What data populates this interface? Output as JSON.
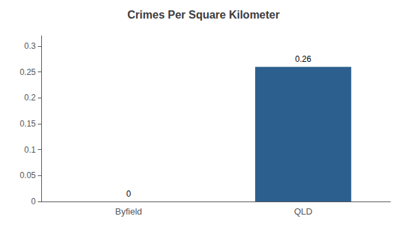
{
  "chart_data": {
    "type": "bar",
    "title": "Crimes Per Square Kilometer",
    "categories": [
      "Byfield",
      "QLD"
    ],
    "values": [
      0,
      0.26
    ],
    "color": "#2d5f8e",
    "ylim": [
      0,
      0.32
    ],
    "yticks": [
      0,
      0.05,
      0.1,
      0.15,
      0.2,
      0.25,
      0.3
    ],
    "grid": false,
    "data_labels": true
  }
}
